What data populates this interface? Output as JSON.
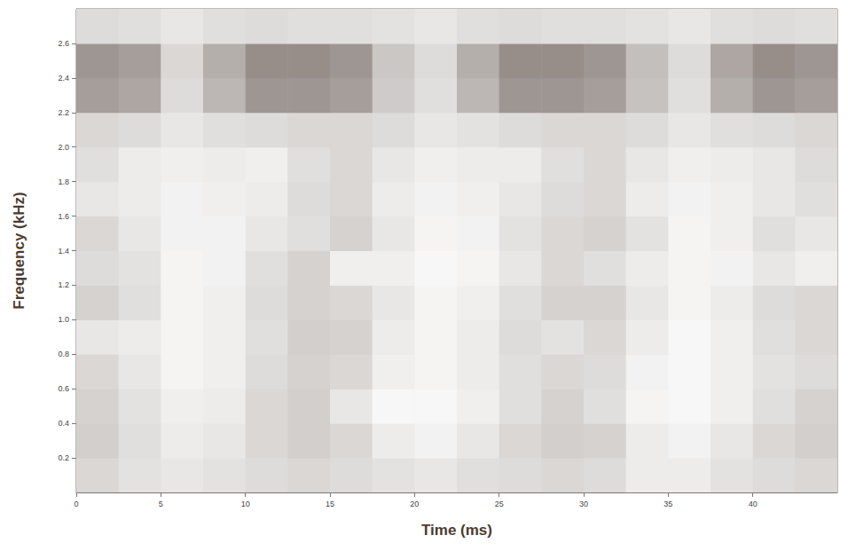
{
  "chart_data": {
    "type": "heatmap",
    "xlabel": "Time (ms)",
    "ylabel": "Frequency (kHz)",
    "xlim": [
      0,
      45
    ],
    "xticks": [
      0,
      5,
      10,
      15,
      20,
      25,
      30,
      35,
      40
    ],
    "ylim": [
      0,
      2.8
    ],
    "yticks": [
      0.2,
      0.4,
      0.6,
      0.8,
      {
        "value": 1,
        "label": "1.0"
      },
      1.2,
      1.4,
      1.6,
      1.8,
      {
        "value": 2,
        "label": "2.0"
      },
      2.2,
      2.4,
      2.6
    ],
    "grid": false,
    "x_edges": [
      0,
      2.5,
      5,
      7.5,
      10,
      12.5,
      15,
      17.5,
      20,
      22.5,
      25,
      27.5,
      30,
      32.5,
      35,
      37.5,
      40,
      42.5,
      45
    ],
    "y_edges": [
      0,
      0.2,
      0.4,
      0.6,
      0.8,
      1.0,
      1.2,
      1.4,
      1.6,
      1.8,
      2.0,
      2.2,
      2.4,
      2.6,
      2.8
    ],
    "cells": [
      [
        0.75,
        0.82,
        0.85,
        0.82,
        0.78,
        0.75,
        0.78,
        0.82,
        0.85,
        0.8,
        0.78,
        0.75,
        0.78,
        0.88,
        0.88,
        0.82,
        0.78,
        0.75
      ],
      [
        0.7,
        0.8,
        0.88,
        0.85,
        0.75,
        0.7,
        0.75,
        0.88,
        0.92,
        0.85,
        0.75,
        0.7,
        0.72,
        0.88,
        0.92,
        0.85,
        0.75,
        0.7
      ],
      [
        0.72,
        0.82,
        0.9,
        0.88,
        0.75,
        0.7,
        0.85,
        0.95,
        0.95,
        0.9,
        0.8,
        0.72,
        0.8,
        0.93,
        0.95,
        0.9,
        0.8,
        0.72
      ],
      [
        0.75,
        0.85,
        0.93,
        0.9,
        0.78,
        0.72,
        0.75,
        0.9,
        0.93,
        0.88,
        0.8,
        0.75,
        0.78,
        0.92,
        0.95,
        0.9,
        0.82,
        0.78
      ],
      [
        0.85,
        0.88,
        0.93,
        0.9,
        0.8,
        0.7,
        0.72,
        0.88,
        0.93,
        0.88,
        0.78,
        0.82,
        0.75,
        0.88,
        0.95,
        0.9,
        0.8,
        0.75
      ],
      [
        0.72,
        0.8,
        0.93,
        0.9,
        0.78,
        0.72,
        0.75,
        0.85,
        0.93,
        0.9,
        0.8,
        0.72,
        0.72,
        0.85,
        0.93,
        0.88,
        0.78,
        0.75
      ],
      [
        0.78,
        0.82,
        0.93,
        0.92,
        0.8,
        0.72,
        0.9,
        0.9,
        0.95,
        0.93,
        0.85,
        0.75,
        0.8,
        0.88,
        0.93,
        0.92,
        0.85,
        0.9
      ],
      [
        0.75,
        0.85,
        0.92,
        0.92,
        0.85,
        0.8,
        0.72,
        0.85,
        0.93,
        0.92,
        0.82,
        0.75,
        0.72,
        0.82,
        0.93,
        0.9,
        0.8,
        0.85
      ],
      [
        0.85,
        0.88,
        0.92,
        0.9,
        0.88,
        0.78,
        0.75,
        0.88,
        0.92,
        0.9,
        0.85,
        0.78,
        0.75,
        0.88,
        0.92,
        0.9,
        0.85,
        0.8
      ],
      [
        0.8,
        0.88,
        0.9,
        0.88,
        0.9,
        0.8,
        0.75,
        0.85,
        0.9,
        0.88,
        0.88,
        0.8,
        0.75,
        0.85,
        0.9,
        0.88,
        0.85,
        0.78
      ],
      [
        0.75,
        0.78,
        0.85,
        0.8,
        0.78,
        0.75,
        0.75,
        0.78,
        0.85,
        0.82,
        0.78,
        0.75,
        0.75,
        0.78,
        0.85,
        0.8,
        0.78,
        0.75
      ],
      [
        0.4,
        0.45,
        0.78,
        0.55,
        0.35,
        0.35,
        0.4,
        0.68,
        0.8,
        0.55,
        0.35,
        0.35,
        0.4,
        0.62,
        0.8,
        0.5,
        0.35,
        0.4
      ],
      [
        0.35,
        0.4,
        0.75,
        0.5,
        0.3,
        0.3,
        0.35,
        0.65,
        0.78,
        0.5,
        0.3,
        0.3,
        0.35,
        0.6,
        0.78,
        0.45,
        0.3,
        0.35
      ],
      [
        0.78,
        0.8,
        0.85,
        0.8,
        0.78,
        0.8,
        0.8,
        0.82,
        0.85,
        0.8,
        0.78,
        0.8,
        0.8,
        0.82,
        0.85,
        0.8,
        0.78,
        0.8
      ]
    ]
  }
}
